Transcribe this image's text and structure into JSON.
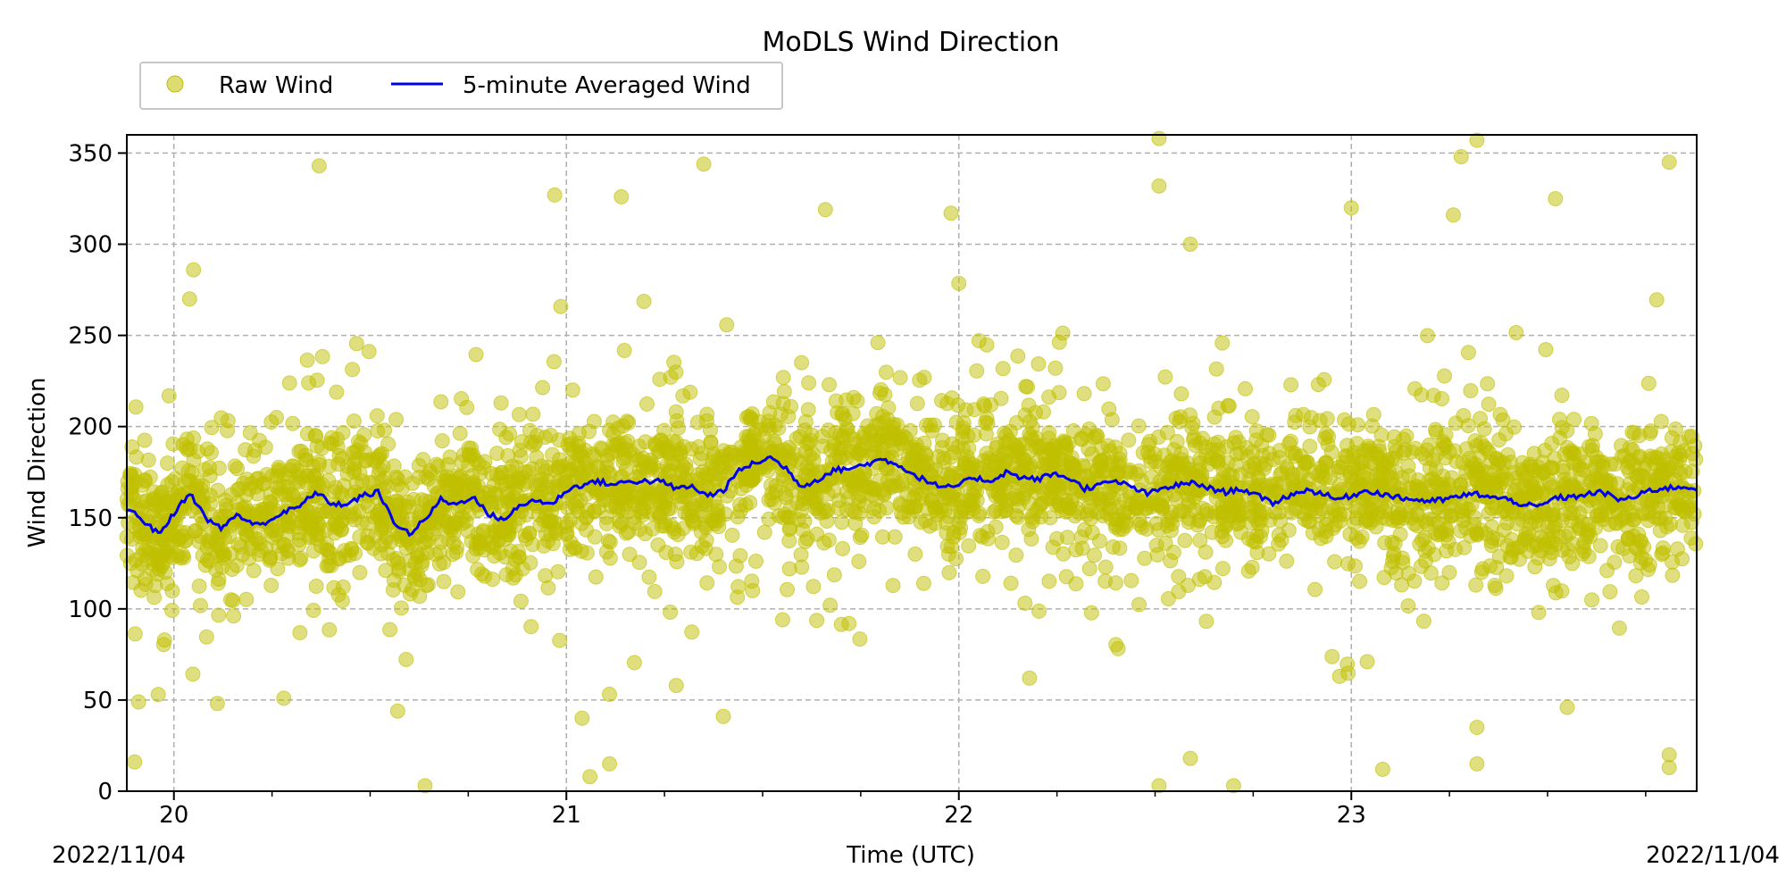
{
  "chart_data": {
    "type": "scatter",
    "title": "MoDLS Wind Direction",
    "xlabel": "Time (UTC)",
    "ylabel": "Wind Direction",
    "x_date_left": "2022/11/04",
    "x_date_right": "2022/11/04",
    "xlim": [
      19.88,
      23.88
    ],
    "ylim": [
      0,
      360
    ],
    "x_ticks": [
      20,
      21,
      22,
      23
    ],
    "x_tick_labels": [
      "20",
      "21",
      "22",
      "23"
    ],
    "y_ticks": [
      0,
      50,
      100,
      150,
      200,
      250,
      300,
      350
    ],
    "y_tick_labels": [
      "0",
      "50",
      "100",
      "150",
      "200",
      "250",
      "300",
      "350"
    ],
    "grid": true,
    "legend_position": "top-left, above plot",
    "series": [
      {
        "name": "Raw Wind",
        "kind": "scatter",
        "color": "#bfbf00",
        "summary": "dense cloud of points mostly 100-220, with scattered outliers between 0 and 360",
        "outliers": [
          [
            19.91,
            49
          ],
          [
            19.9,
            16
          ],
          [
            19.96,
            53
          ],
          [
            20.05,
            286
          ],
          [
            20.04,
            270
          ],
          [
            20.28,
            51
          ],
          [
            20.37,
            343
          ],
          [
            20.57,
            44
          ],
          [
            20.64,
            3
          ],
          [
            20.97,
            327
          ],
          [
            21.04,
            40
          ],
          [
            21.06,
            8
          ],
          [
            21.11,
            15
          ],
          [
            21.14,
            326
          ],
          [
            21.35,
            344
          ],
          [
            21.4,
            41
          ],
          [
            21.98,
            317
          ],
          [
            21.66,
            319
          ],
          [
            22.51,
            358
          ],
          [
            22.51,
            332
          ],
          [
            22.51,
            3
          ],
          [
            22.59,
            300
          ],
          [
            22.59,
            18
          ],
          [
            22.7,
            3
          ],
          [
            23.0,
            320
          ],
          [
            23.08,
            12
          ],
          [
            23.28,
            348
          ],
          [
            23.26,
            316
          ],
          [
            23.32,
            357
          ],
          [
            23.32,
            35
          ],
          [
            23.32,
            15
          ],
          [
            23.52,
            325
          ],
          [
            23.55,
            46
          ],
          [
            23.81,
            345
          ],
          [
            23.81,
            20
          ],
          [
            23.81,
            13
          ],
          [
            22.18,
            62
          ],
          [
            21.28,
            58
          ],
          [
            21.72,
            92
          ],
          [
            22.97,
            63
          ]
        ]
      },
      {
        "name": "5-minute Averaged Wind",
        "kind": "line",
        "color": "#0000ee",
        "x": [
          19.88,
          19.92,
          19.96,
          20.0,
          20.04,
          20.08,
          20.12,
          20.16,
          20.2,
          20.24,
          20.28,
          20.32,
          20.36,
          20.4,
          20.44,
          20.48,
          20.52,
          20.56,
          20.6,
          20.64,
          20.68,
          20.72,
          20.76,
          20.8,
          20.84,
          20.88,
          20.92,
          20.96,
          21.0,
          21.04,
          21.08,
          21.12,
          21.16,
          21.2,
          21.24,
          21.28,
          21.32,
          21.36,
          21.4,
          21.44,
          21.48,
          21.52,
          21.56,
          21.6,
          21.64,
          21.68,
          21.72,
          21.76,
          21.8,
          21.84,
          21.88,
          21.92,
          21.96,
          22.0,
          22.04,
          22.08,
          22.12,
          22.16,
          22.2,
          22.24,
          22.28,
          22.32,
          22.36,
          22.4,
          22.44,
          22.48,
          22.52,
          22.56,
          22.6,
          22.64,
          22.68,
          22.72,
          22.76,
          22.8,
          22.84,
          22.88,
          22.92,
          22.96,
          23.0,
          23.04,
          23.08,
          23.12,
          23.16,
          23.2,
          23.24,
          23.28,
          23.32,
          23.36,
          23.4,
          23.44,
          23.48,
          23.52,
          23.56,
          23.6,
          23.64,
          23.68,
          23.72,
          23.76,
          23.8,
          23.84,
          23.88
        ],
        "y": [
          155,
          149,
          141,
          152,
          164,
          150,
          144,
          152,
          146,
          148,
          153,
          156,
          164,
          158,
          157,
          162,
          164,
          148,
          141,
          149,
          160,
          157,
          162,
          152,
          149,
          156,
          160,
          157,
          165,
          168,
          170,
          168,
          170,
          170,
          170,
          166,
          167,
          162,
          165,
          176,
          180,
          183,
          177,
          167,
          171,
          176,
          177,
          179,
          182,
          180,
          174,
          170,
          166,
          168,
          172,
          170,
          175,
          172,
          171,
          174,
          172,
          166,
          168,
          170,
          167,
          163,
          166,
          168,
          169,
          166,
          164,
          166,
          162,
          158,
          162,
          165,
          164,
          160,
          162,
          165,
          163,
          161,
          160,
          159,
          160,
          162,
          163,
          161,
          160,
          157,
          156,
          161,
          161,
          163,
          164,
          160,
          161,
          165,
          166,
          167,
          166
        ]
      }
    ]
  }
}
